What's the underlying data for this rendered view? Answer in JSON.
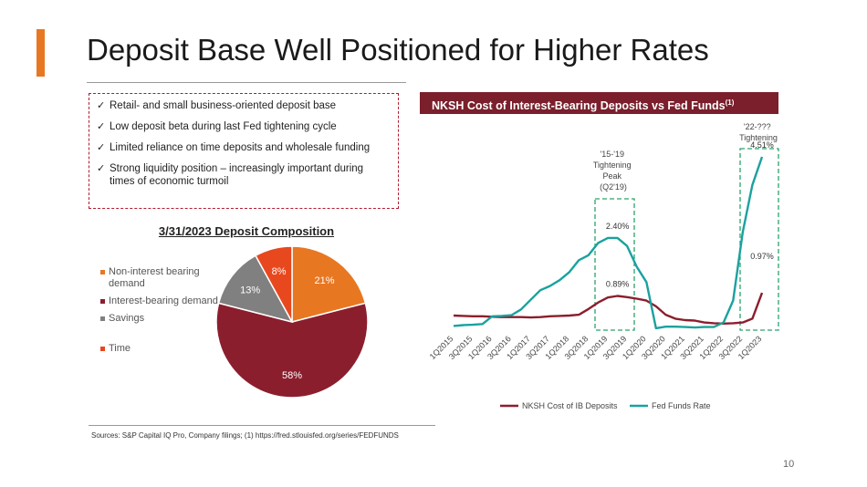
{
  "slide": {
    "title": "Deposit Base Well Positioned for Higher Rates",
    "page_number": "10",
    "accent_color": "#e87722",
    "bullets": [
      "Retail- and small business-oriented deposit base",
      "Low deposit beta during last Fed tightening cycle",
      "Limited reliance on time deposits and wholesale funding",
      "Strong liquidity position – increasingly important during times of economic turmoil"
    ],
    "sources": "Sources: S&P Capital IQ Pro, Company filings; (1) https://fred.stlouisfed.org/series/FEDFUNDS"
  },
  "pie": {
    "title": "3/31/2023 Deposit Composition",
    "legend": [
      "Non-interest bearing demand",
      "Interest-bearing demand",
      "Savings",
      "Time"
    ]
  },
  "line": {
    "title": "NKSH Cost of Interest-Bearing Deposits vs Fed Funds",
    "title_sup": "(1)",
    "header_color": "#7a1f2b",
    "annotation_1519": [
      "'15-'19",
      "Tightening",
      "Peak",
      "(Q2'19)"
    ],
    "annotation_22": [
      "'22-???",
      "Tightening"
    ],
    "legend": [
      "NKSH Cost of IB Deposits",
      "Fed Funds Rate"
    ]
  },
  "chart_data": [
    {
      "type": "pie",
      "title": "3/31/2023 Deposit Composition",
      "categories": [
        "Non-interest bearing demand",
        "Interest-bearing demand",
        "Savings",
        "Time"
      ],
      "values": [
        21,
        58,
        13,
        8
      ],
      "labels": [
        "21%",
        "58%",
        "13%",
        "8%"
      ],
      "colors": [
        "#e87722",
        "#8b1e2d",
        "#808080",
        "#e8481e"
      ]
    },
    {
      "type": "line",
      "title": "NKSH Cost of Interest-Bearing Deposits vs Fed Funds",
      "x": [
        "1Q2015",
        "2Q2015",
        "3Q2015",
        "4Q2015",
        "1Q2016",
        "2Q2016",
        "3Q2016",
        "4Q2016",
        "1Q2017",
        "2Q2017",
        "3Q2017",
        "4Q2017",
        "1Q2018",
        "2Q2018",
        "3Q2018",
        "4Q2018",
        "1Q2019",
        "2Q2019",
        "3Q2019",
        "4Q2019",
        "1Q2020",
        "2Q2020",
        "3Q2020",
        "4Q2020",
        "1Q2021",
        "2Q2021",
        "3Q2021",
        "4Q2021",
        "1Q2022",
        "2Q2022",
        "3Q2022",
        "4Q2022",
        "1Q2023"
      ],
      "x_tick_labels": [
        "1Q2015",
        "3Q2015",
        "1Q2016",
        "3Q2016",
        "1Q2017",
        "3Q2017",
        "1Q2018",
        "3Q2018",
        "1Q2019",
        "3Q2019",
        "1Q2020",
        "3Q2020",
        "1Q2021",
        "3Q2021",
        "1Q2022",
        "3Q2022",
        "1Q2023"
      ],
      "series": [
        {
          "name": "NKSH Cost of IB Deposits",
          "color": "#8b1e2d",
          "values": [
            0.38,
            0.37,
            0.36,
            0.36,
            0.35,
            0.34,
            0.34,
            0.34,
            0.33,
            0.34,
            0.36,
            0.37,
            0.38,
            0.4,
            0.55,
            0.72,
            0.85,
            0.89,
            0.86,
            0.82,
            0.77,
            0.62,
            0.4,
            0.3,
            0.26,
            0.25,
            0.2,
            0.18,
            0.17,
            0.18,
            0.2,
            0.3,
            0.97
          ]
        },
        {
          "name": "Fed Funds Rate",
          "color": "#1aa29e",
          "values": [
            0.11,
            0.13,
            0.14,
            0.16,
            0.36,
            0.37,
            0.39,
            0.54,
            0.79,
            1.04,
            1.15,
            1.3,
            1.51,
            1.82,
            1.95,
            2.27,
            2.4,
            2.4,
            2.19,
            1.65,
            1.25,
            0.05,
            0.09,
            0.09,
            0.08,
            0.07,
            0.08,
            0.08,
            0.2,
            0.77,
            2.56,
            3.78,
            4.51
          ]
        }
      ],
      "data_labels": [
        "2.40%",
        "0.89%",
        "4.51%",
        "0.97%"
      ],
      "ylim": [
        0,
        5
      ],
      "grid": false,
      "legend_position": "bottom"
    }
  ]
}
